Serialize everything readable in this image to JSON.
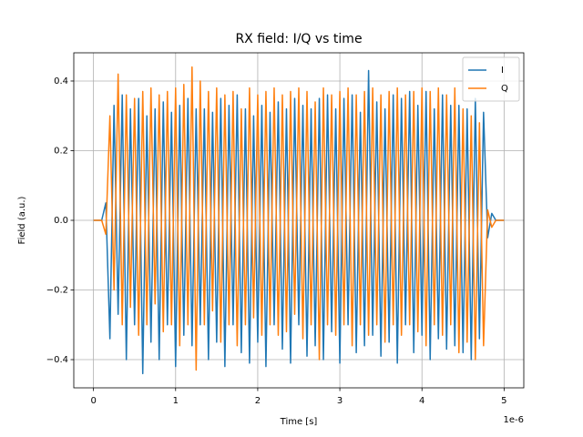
{
  "chart_data": {
    "type": "line",
    "title": "RX field: I/Q vs time",
    "xlabel": "Time [s]",
    "ylabel": "Field (a.u.)",
    "x_offset_label": "1e-6",
    "x": [
      0,
      0.05,
      0.1,
      0.15,
      0.2,
      0.25,
      0.3,
      0.35,
      0.4,
      0.45,
      0.5,
      0.55,
      0.6,
      0.65,
      0.7,
      0.75,
      0.8,
      0.85,
      0.9,
      0.95,
      1.0,
      1.05,
      1.1,
      1.15,
      1.2,
      1.25,
      1.3,
      1.35,
      1.4,
      1.45,
      1.5,
      1.55,
      1.6,
      1.65,
      1.7,
      1.75,
      1.8,
      1.85,
      1.9,
      1.95,
      2.0,
      2.05,
      2.1,
      2.15,
      2.2,
      2.25,
      2.3,
      2.35,
      2.4,
      2.45,
      2.5,
      2.55,
      2.6,
      2.65,
      2.7,
      2.75,
      2.8,
      2.85,
      2.9,
      2.95,
      3.0,
      3.05,
      3.1,
      3.15,
      3.2,
      3.25,
      3.3,
      3.35,
      3.4,
      3.45,
      3.5,
      3.55,
      3.6,
      3.65,
      3.7,
      3.75,
      3.8,
      3.85,
      3.9,
      3.95,
      4.0,
      4.05,
      4.1,
      4.15,
      4.2,
      4.25,
      4.3,
      4.35,
      4.4,
      4.45,
      4.5,
      4.55,
      4.6,
      4.65,
      4.7,
      4.75,
      4.8,
      4.85,
      4.9,
      4.95,
      5.0
    ],
    "series": [
      {
        "name": "I",
        "color": "#1f77b4",
        "values": [
          0,
          0,
          0,
          0.05,
          -0.34,
          0.33,
          -0.27,
          0.36,
          -0.4,
          0.32,
          -0.3,
          0.35,
          -0.44,
          0.3,
          -0.35,
          0.32,
          -0.4,
          0.34,
          -0.3,
          0.31,
          -0.42,
          0.33,
          -0.33,
          0.35,
          -0.36,
          0.32,
          -0.3,
          0.32,
          -0.4,
          0.31,
          -0.35,
          0.35,
          -0.42,
          0.33,
          -0.3,
          0.36,
          -0.38,
          0.32,
          -0.41,
          0.3,
          -0.35,
          0.33,
          -0.42,
          0.31,
          -0.3,
          0.34,
          -0.37,
          0.32,
          -0.41,
          0.35,
          -0.3,
          0.33,
          -0.39,
          0.32,
          -0.36,
          0.35,
          -0.4,
          0.36,
          -0.32,
          0.32,
          -0.41,
          0.35,
          -0.3,
          0.36,
          -0.38,
          0.31,
          -0.36,
          0.43,
          -0.33,
          0.34,
          -0.39,
          0.32,
          -0.35,
          0.36,
          -0.41,
          0.35,
          -0.3,
          0.37,
          -0.38,
          0.33,
          -0.33,
          0.37,
          -0.4,
          0.32,
          -0.34,
          0.36,
          -0.37,
          0.33,
          -0.36,
          0.33,
          -0.38,
          0.32,
          -0.4,
          0.35,
          -0.34,
          0.31,
          -0.05,
          0.02,
          0,
          0,
          0
        ]
      },
      {
        "name": "Q",
        "color": "#ff7f0e",
        "values": [
          0,
          0,
          0,
          -0.04,
          0.3,
          -0.2,
          0.42,
          -0.3,
          0.36,
          -0.25,
          0.35,
          -0.33,
          0.37,
          -0.3,
          0.38,
          -0.24,
          0.36,
          -0.32,
          0.37,
          -0.3,
          0.38,
          -0.36,
          0.39,
          -0.3,
          0.44,
          -0.43,
          0.4,
          -0.3,
          0.37,
          -0.26,
          0.38,
          -0.35,
          0.36,
          -0.3,
          0.37,
          -0.36,
          0.32,
          -0.3,
          0.38,
          -0.28,
          0.36,
          -0.33,
          0.37,
          -0.3,
          0.38,
          -0.33,
          0.36,
          -0.32,
          0.37,
          -0.27,
          0.38,
          -0.34,
          0.37,
          -0.3,
          0.34,
          -0.4,
          0.38,
          -0.3,
          0.36,
          -0.33,
          0.37,
          -0.3,
          0.38,
          -0.36,
          0.36,
          -0.3,
          0.37,
          -0.33,
          0.38,
          -0.3,
          0.36,
          -0.35,
          0.37,
          -0.3,
          0.38,
          -0.33,
          0.36,
          -0.3,
          0.37,
          -0.32,
          0.38,
          -0.36,
          0.37,
          -0.3,
          0.38,
          -0.33,
          0.36,
          -0.3,
          0.38,
          -0.38,
          0.32,
          -0.35,
          0.3,
          -0.4,
          0.28,
          -0.36,
          0.03,
          -0.02,
          0,
          0,
          0
        ]
      }
    ],
    "xlim": [
      -0.24,
      5.24
    ],
    "ylim": [
      -0.481,
      0.481
    ],
    "xticks": [
      0,
      1,
      2,
      3,
      4,
      5
    ],
    "yticks": [
      {
        "value": -0.4,
        "label": "−0.4"
      },
      {
        "value": -0.2,
        "label": "−0.2"
      },
      {
        "value": 0,
        "label": "0.0"
      },
      {
        "value": 0.2,
        "label": "0.2"
      },
      {
        "value": 0.4,
        "label": "0.4"
      }
    ],
    "grid": true,
    "legend": "upper right"
  }
}
